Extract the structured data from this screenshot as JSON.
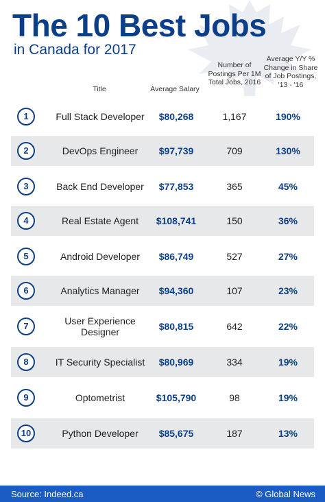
{
  "header": {
    "title": "The 10 Best Jobs",
    "subtitle": "in Canada for 2017"
  },
  "columns": {
    "title": "Title",
    "salary": "Average Salary",
    "postings": "Number of Postings Per 1M Total Jobs, 2016",
    "change": "Average Y/Y % Change in Share of Job Postings, '13 - '16"
  },
  "rows": [
    {
      "rank": "1",
      "title": "Full Stack Developer",
      "salary": "$80,268",
      "postings": "1,167",
      "change": "190%"
    },
    {
      "rank": "2",
      "title": "DevOps Engineer",
      "salary": "$97,739",
      "postings": "709",
      "change": "130%"
    },
    {
      "rank": "3",
      "title": "Back End Developer",
      "salary": "$77,853",
      "postings": "365",
      "change": "45%"
    },
    {
      "rank": "4",
      "title": "Real Estate Agent",
      "salary": "$108,741",
      "postings": "150",
      "change": "36%"
    },
    {
      "rank": "5",
      "title": "Android Developer",
      "salary": "$86,749",
      "postings": "527",
      "change": "27%"
    },
    {
      "rank": "6",
      "title": "Analytics Manager",
      "salary": "$94,360",
      "postings": "107",
      "change": "23%"
    },
    {
      "rank": "7",
      "title": "User Experience Designer",
      "salary": "$80,815",
      "postings": "642",
      "change": "22%"
    },
    {
      "rank": "8",
      "title": "IT Security Specialist",
      "salary": "$80,969",
      "postings": "334",
      "change": "19%"
    },
    {
      "rank": "9",
      "title": "Optometrist",
      "salary": "$105,790",
      "postings": "98",
      "change": "19%"
    },
    {
      "rank": "10",
      "title": "Python Developer",
      "salary": "$85,675",
      "postings": "187",
      "change": "13%"
    }
  ],
  "footer": {
    "source": "Source: Indeed.ca",
    "brand": "© Global News"
  },
  "colors": {
    "accent": "#0d3e88",
    "footer_bg": "#1b5bc4",
    "row_shade": "#e7e8ea",
    "leaf": "#e9ecf1"
  },
  "icons": {
    "background": "maple-leaf-icon"
  }
}
